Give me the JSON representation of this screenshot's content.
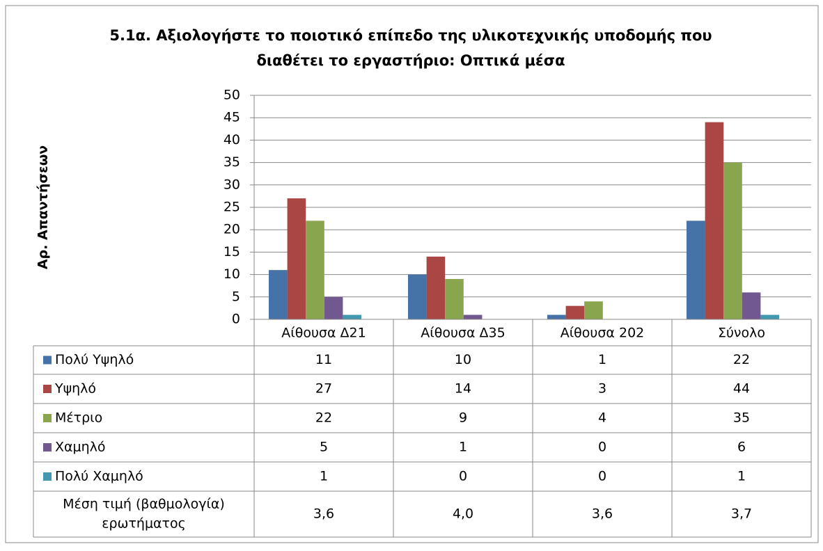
{
  "chart_data": {
    "type": "bar",
    "title_lines": [
      "5.1α. Αξιολογήστε το ποιοτικό επίπεδο της υλικοτεχνικής υποδομής που",
      "διαθέτει το εργαστήριο: Οπτικά μέσα"
    ],
    "y_label": "Αρ. Απαντήσεων",
    "categories": [
      "Αίθουσα Δ21",
      "Αίθουσα Δ35",
      "Αίθουσα 202",
      "Σύνολο"
    ],
    "series": [
      {
        "name": "Πολύ Υψηλό",
        "color": "#4572a7",
        "values": [
          11,
          10,
          1,
          22
        ]
      },
      {
        "name": "Υψηλό",
        "color": "#aa4643",
        "values": [
          27,
          14,
          3,
          44
        ]
      },
      {
        "name": "Μέτριο",
        "color": "#89a54e",
        "values": [
          22,
          9,
          4,
          35
        ]
      },
      {
        "name": "Χαμηλό",
        "color": "#71588f",
        "values": [
          5,
          1,
          0,
          6
        ]
      },
      {
        "name": "Πολύ Χαμηλό",
        "color": "#4198af",
        "values": [
          1,
          0,
          0,
          1
        ]
      }
    ],
    "summary_row": {
      "label_lines": [
        "Μέση τιμή (βαθμολογία)",
        "ερωτήματος"
      ],
      "values": [
        "3,6",
        "4,0",
        "3,6",
        "3,7"
      ]
    },
    "ylim": [
      0,
      50
    ],
    "yticks": [
      0,
      5,
      10,
      15,
      20,
      25,
      30,
      35,
      40,
      45,
      50
    ],
    "grid": true
  }
}
